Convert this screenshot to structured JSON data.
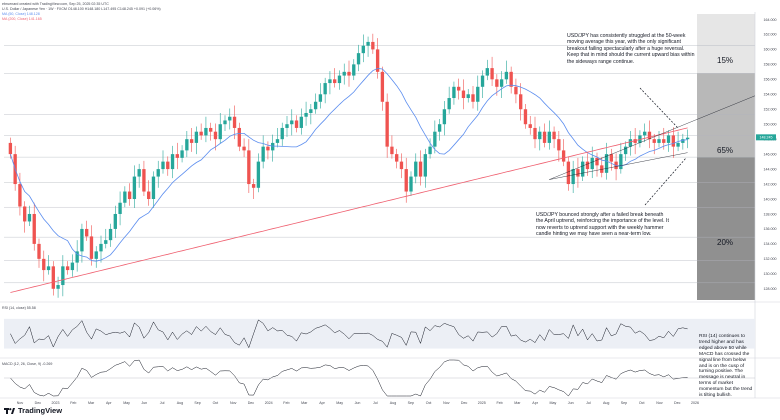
{
  "header": {
    "line1": "ebruenard created with TradingView.com, Sep 25, 2025 02:35 UTC",
    "line2": "U.S. Dollar / Japanese Yen · 1W · FXCM  O148.100  H148.180  L147.495  C148.245  +0.091 (+0.06%)",
    "line3": "MA (50, Close)  148.128",
    "line4": "MA (200, Close)  141.165"
  },
  "annotations": {
    "top": "USD/JPY has consistently struggled at the 50-week moving average this year, with the only significant breakout failing spectacularly after a huge reversal. Keep that in mind should the current upward bias within the sideways range continue.",
    "bottom": "USD/JPY bounced strongly after a failed break beneath the April uptrend, reinforcing the importance of the level. It now reverts to uptrend support with the weekly hammer candle hinting we may have seen a near-term low.",
    "rsi_note": "RSI (14) continues to trend higher and has edged above 50 while MACD has crossed the signal line from below and is on the cusp of turning positive. The message is neutral in terms of market momentum but the trend is tilting bullish."
  },
  "zone_labels": [
    "15%",
    "65%",
    "20%"
  ],
  "indicator_labels": {
    "rsi": "RSI (14, close)  55.58",
    "macd": "MACD (12, 26, Close, 9)  -0.269"
  },
  "brand": {
    "name": "TradingView"
  },
  "colors": {
    "up": "#26a69a",
    "down": "#ef5350",
    "ma50": "#5b8def",
    "ma200": "#ef6070",
    "zone1": "#e6e6e6",
    "zone2": "#b8b8b8",
    "zone3": "#909090"
  },
  "chart_data": {
    "type": "candlestick",
    "instrument": "U.S. Dollar / Japanese Yen",
    "timeframe": "1W",
    "x_labels": [
      "Nov",
      "Dec",
      "2023",
      "Feb",
      "Mar",
      "Apr",
      "May",
      "Jun",
      "Jul",
      "Aug",
      "Sep",
      "Oct",
      "Nov",
      "Dec",
      "2024",
      "Feb",
      "Mar",
      "Apr",
      "May",
      "Jun",
      "Jul",
      "Aug",
      "Sep",
      "Oct",
      "Nov",
      "Dec",
      "2025",
      "Feb",
      "Mar",
      "Apr",
      "May",
      "Jun",
      "Jul",
      "Aug",
      "Sep",
      "Oct",
      "Nov",
      "Dec",
      "2026"
    ],
    "y_ticks": [
      128,
      130,
      132,
      134,
      136,
      138,
      140,
      142,
      144,
      146,
      148,
      150,
      152,
      154,
      156,
      158,
      160,
      162,
      164
    ],
    "ylim": [
      126.5,
      165
    ],
    "series": [
      {
        "name": "USD/JPY",
        "close": [
          146,
          142,
          139,
          137,
          138,
          134,
          132,
          130.5,
          131,
          128,
          128.5,
          131,
          130.5,
          131.5,
          133,
          136,
          135,
          132,
          133,
          134,
          134.5,
          136,
          138,
          139.5,
          141,
          140,
          143,
          144,
          141,
          140,
          143,
          144,
          145,
          144,
          146,
          145.5,
          146.5,
          148,
          147.5,
          149,
          148.5,
          149.5,
          149,
          148,
          150,
          150.5,
          151,
          149.5,
          147,
          146.5,
          142,
          141.5,
          145,
          147,
          146.5,
          147.5,
          148,
          149.5,
          150,
          150.5,
          149.5,
          151,
          151.5,
          152,
          153,
          154,
          155.5,
          156,
          155.5,
          156.5,
          157,
          156.5,
          158,
          159.5,
          160.5,
          161,
          160,
          157,
          153,
          147,
          146,
          145,
          144,
          141,
          143,
          145,
          143,
          146,
          147,
          149,
          150,
          152,
          153.5,
          155,
          154.5,
          153.5,
          154,
          153,
          155,
          156.5,
          157.5,
          156,
          155,
          156,
          157,
          155,
          154,
          152,
          150,
          149.5,
          148,
          149,
          147.5,
          149,
          148,
          146.5,
          145,
          142,
          144,
          143,
          145,
          144,
          145.5,
          144.5,
          143.5,
          146,
          145,
          144,
          146,
          147,
          148,
          147.5,
          148.5,
          149,
          148,
          147.5,
          148,
          147.5,
          148.5,
          147,
          147.5,
          148,
          148.2
        ]
      },
      {
        "name": "MA (50, Close)"
      },
      {
        "name": "MA (200, Close)"
      }
    ],
    "current_price": 148.245,
    "rsi": {
      "name": "RSI (14, close)",
      "value": 55.58
    },
    "macd": {
      "name": "MACD (12, 26, Close, 9)",
      "value": -0.269
    }
  }
}
